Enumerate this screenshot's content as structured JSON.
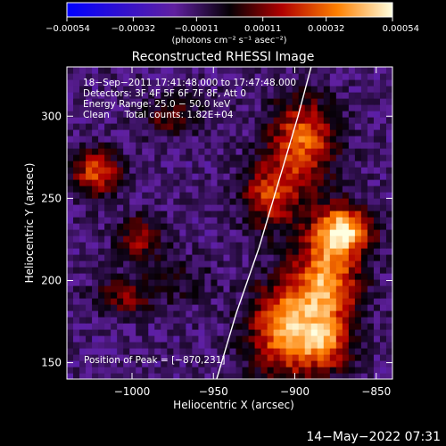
{
  "chart_data": {
    "type": "heatmap",
    "title": "Reconstructed RHESSI Image",
    "xlabel": "Heliocentric X (arcsec)",
    "ylabel": "Heliocentric Y (arcsec)",
    "xlim": [
      -1040,
      -840
    ],
    "ylim": [
      140,
      330
    ],
    "xticks": [
      -1000,
      -950,
      -900,
      -850
    ],
    "yticks": [
      150,
      200,
      250,
      300
    ],
    "xtick_labels": [
      "−1000",
      "−950",
      "−900",
      "−850"
    ],
    "ytick_labels": [
      "150",
      "200",
      "250",
      "300"
    ],
    "annotations": [
      "18−Sep−2011 17:41:48.000 to 17:47:48.000",
      "Detectors: 3F 4F 5F 6F 7F 8F, Att 0",
      "Energy Range: 25.0 − 50.0 keV",
      "Clean     Total counts: 1.82E+04"
    ],
    "peak_label": "Position of Peak = [−870,231]",
    "peak": [
      -870,
      231
    ],
    "colorbar": {
      "min": -0.00054,
      "max": 0.00054,
      "ticks": [
        -0.00054,
        -0.00032,
        -0.00011,
        0.00011,
        0.00032,
        0.00054
      ],
      "tick_labels": [
        "−0.00054",
        "−0.00032",
        "−0.00011",
        "0.00011",
        "0.00032",
        "0.00054"
      ],
      "units_label": "(photons cm⁻² s⁻¹ asec⁻²)"
    },
    "limb": [
      [
        -948,
        140
      ],
      [
        -936,
        180
      ],
      [
        -922,
        220
      ],
      [
        -910,
        260
      ],
      [
        -898,
        300
      ],
      [
        -890,
        330
      ]
    ],
    "sources": [
      {
        "x": -870,
        "y": 231,
        "amp": 0.00054,
        "sx": 12,
        "sy": 10
      },
      {
        "x": -880,
        "y": 200,
        "amp": 0.0005,
        "sx": 14,
        "sy": 22
      },
      {
        "x": -905,
        "y": 170,
        "amp": 0.00052,
        "sx": 16,
        "sy": 20
      },
      {
        "x": -895,
        "y": 285,
        "amp": 0.00044,
        "sx": 14,
        "sy": 18
      },
      {
        "x": -915,
        "y": 252,
        "amp": 0.00036,
        "sx": 12,
        "sy": 14
      },
      {
        "x": -1022,
        "y": 266,
        "amp": 0.0004,
        "sx": 10,
        "sy": 10
      },
      {
        "x": -995,
        "y": 225,
        "amp": 0.00025,
        "sx": 10,
        "sy": 10
      },
      {
        "x": -1005,
        "y": 190,
        "amp": 0.00024,
        "sx": 12,
        "sy": 8
      },
      {
        "x": -975,
        "y": 300,
        "amp": 0.0002,
        "sx": 14,
        "sy": 8
      },
      {
        "x": -880,
        "y": 160,
        "amp": 0.0003,
        "sx": 10,
        "sy": 10
      },
      {
        "x": -970,
        "y": 200,
        "amp": 0.00012,
        "sx": 14,
        "sy": 10
      }
    ],
    "background_level": -0.00013
  },
  "footer": {
    "timestamp": "14−May−2022 07:31"
  }
}
